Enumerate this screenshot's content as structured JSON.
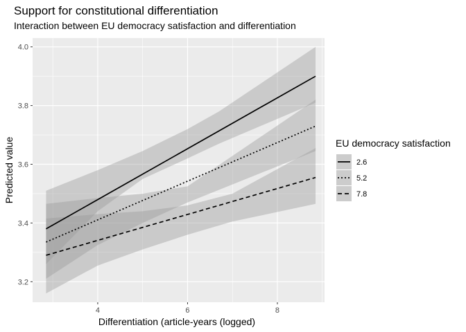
{
  "chart_data": {
    "type": "line",
    "title": "Support for constitutional differentiation",
    "subtitle": "Interaction between EU democracy satisfaction and differentiation",
    "xlabel": "Differentiation (article-years (logged)",
    "ylabel": "Predicted value",
    "xlim": [
      2.55,
      9.05
    ],
    "ylim": [
      3.13,
      4.03
    ],
    "xticks": [
      4,
      6,
      8
    ],
    "yticks": [
      3.2,
      3.4,
      3.6,
      3.8,
      4.0
    ],
    "ytick_labels": [
      "3.2",
      "3.4",
      "3.6",
      "3.8",
      "4.0"
    ],
    "grid": true,
    "legend": {
      "title": "EU democracy satisfaction",
      "position": "right"
    },
    "series": [
      {
        "name": "2.6",
        "linetype": "solid",
        "x": [
          2.85,
          8.85
        ],
        "y": [
          3.38,
          3.9
        ],
        "ribbon": {
          "x": [
            2.85,
            4.0,
            5.0,
            6.0,
            6.7,
            8.85
          ],
          "lower": [
            3.26,
            3.44,
            3.55,
            3.62,
            3.67,
            3.81
          ],
          "upper": [
            3.51,
            3.58,
            3.645,
            3.72,
            3.78,
            4.0
          ]
        }
      },
      {
        "name": "5.2",
        "linetype": "dotted",
        "x": [
          2.85,
          8.85
        ],
        "y": [
          3.335,
          3.73
        ],
        "ribbon": {
          "x": [
            2.85,
            4.0,
            5.0,
            6.0,
            8.85
          ],
          "lower": [
            3.21,
            3.325,
            3.4,
            3.47,
            3.645
          ],
          "upper": [
            3.465,
            3.485,
            3.5,
            3.525,
            3.82
          ]
        }
      },
      {
        "name": "7.8",
        "linetype": "dashed",
        "x": [
          2.85,
          8.85
        ],
        "y": [
          3.29,
          3.555
        ],
        "ribbon": {
          "x": [
            2.85,
            4.0,
            5.0,
            6.0,
            7.0,
            8.85
          ],
          "lower": [
            3.16,
            3.255,
            3.31,
            3.36,
            3.405,
            3.465
          ],
          "upper": [
            3.415,
            3.43,
            3.44,
            3.46,
            3.5,
            3.655
          ]
        }
      }
    ]
  }
}
